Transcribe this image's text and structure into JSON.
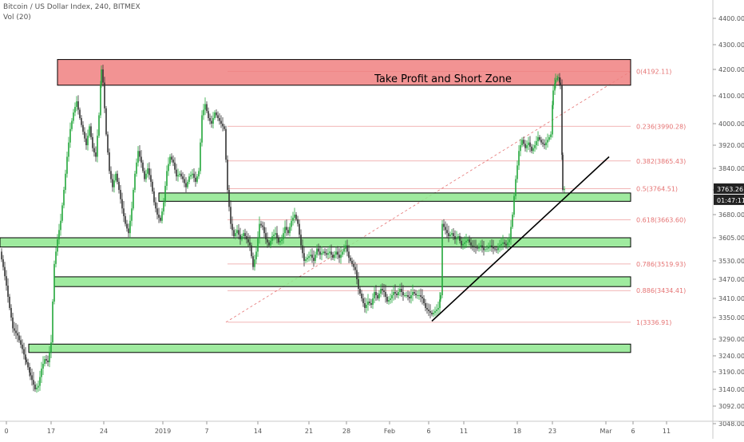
{
  "header": {
    "title": "Bitcoin / US Dollar Index, 240, BITMEX",
    "volume": "Vol (20)"
  },
  "colors": {
    "up": "#22a63a",
    "down": "#333333",
    "green_zone": "#8ee88e",
    "red_zone": "#f08080",
    "fib": "#e57373",
    "axis_text": "#555555"
  },
  "chart_data": {
    "type": "candlestick",
    "symbol": "Bitcoin / US Dollar Index",
    "timeframe": "240",
    "exchange": "BITMEX",
    "y_axis": {
      "ylim": [
        3048,
        4460
      ],
      "ticks": [
        "4400.00",
        "4300.00",
        "4200.00",
        "4100.00",
        "4000.00",
        "3920.00",
        "3840.00",
        "3760.00",
        "3680.00",
        "3605.00",
        "3530.00",
        "3470.00",
        "3410.00",
        "3350.00",
        "3290.00",
        "3240.00",
        "3190.00",
        "3140.00",
        "3092.00",
        "3048.00"
      ],
      "last_price": "3763.26",
      "countdown": "01:47:11"
    },
    "x_axis": {
      "ticks": [
        "0",
        "17",
        "24",
        "2019",
        "7",
        "14",
        "21",
        "28",
        "Feb",
        "6",
        "11",
        "18",
        "23",
        "Mar",
        "6",
        "11"
      ]
    },
    "annotation": "Take Profit and Short Zone",
    "zones": [
      {
        "kind": "resistance",
        "color": "red",
        "low": 4140,
        "high": 4240
      },
      {
        "kind": "support",
        "color": "green",
        "low": 3723,
        "high": 3750
      },
      {
        "kind": "support",
        "color": "green",
        "low": 3575,
        "high": 3605
      },
      {
        "kind": "support",
        "color": "green",
        "low": 3447,
        "high": 3478
      },
      {
        "kind": "support",
        "color": "green",
        "low": 3250,
        "high": 3275
      }
    ],
    "fib_levels": [
      {
        "label": "0(4192.11)",
        "value": 4192.11
      },
      {
        "label": "0.236(3990.28)",
        "value": 3990.28
      },
      {
        "label": "0.382(3865.43)",
        "value": 3865.43
      },
      {
        "label": "0.5(3764.51)",
        "value": 3764.51
      },
      {
        "label": "0.618(3663.60)",
        "value": 3663.6
      },
      {
        "label": "0.786(3519.93)",
        "value": 3519.93
      },
      {
        "label": "0.886(3434.41)",
        "value": 3434.41
      },
      {
        "label": "1(3336.91)",
        "value": 3336.91
      }
    ],
    "trendline_support": {
      "start": [
        "Feb 6",
        3340
      ],
      "end": [
        "Feb 28",
        3880
      ]
    },
    "fib_extension_line": {
      "start": [
        3336.91
      ],
      "end": [
        4192.11
      ]
    },
    "price_path": [
      [
        0,
        3560
      ],
      [
        4,
        3510
      ],
      [
        8,
        3450
      ],
      [
        12,
        3380
      ],
      [
        16,
        3320
      ],
      [
        22,
        3300
      ],
      [
        28,
        3260
      ],
      [
        33,
        3220
      ],
      [
        38,
        3180
      ],
      [
        44,
        3140
      ],
      [
        48,
        3150
      ],
      [
        52,
        3200
      ],
      [
        56,
        3230
      ],
      [
        60,
        3220
      ],
      [
        64,
        3280
      ],
      [
        68,
        3520
      ],
      [
        72,
        3600
      ],
      [
        76,
        3660
      ],
      [
        80,
        3760
      ],
      [
        84,
        3880
      ],
      [
        88,
        3980
      ],
      [
        92,
        4040
      ],
      [
        96,
        4080
      ],
      [
        100,
        4020
      ],
      [
        104,
        3970
      ],
      [
        108,
        3920
      ],
      [
        112,
        3990
      ],
      [
        116,
        3910
      ],
      [
        120,
        3880
      ],
      [
        124,
        4030
      ],
      [
        127,
        4200
      ],
      [
        129,
        4150
      ],
      [
        133,
        3960
      ],
      [
        137,
        3830
      ],
      [
        141,
        3770
      ],
      [
        145,
        3820
      ],
      [
        149,
        3760
      ],
      [
        153,
        3700
      ],
      [
        157,
        3650
      ],
      [
        161,
        3620
      ],
      [
        165,
        3700
      ],
      [
        169,
        3820
      ],
      [
        173,
        3900
      ],
      [
        177,
        3860
      ],
      [
        181,
        3800
      ],
      [
        185,
        3840
      ],
      [
        189,
        3790
      ],
      [
        193,
        3720
      ],
      [
        197,
        3680
      ],
      [
        201,
        3660
      ],
      [
        205,
        3720
      ],
      [
        209,
        3830
      ],
      [
        213,
        3880
      ],
      [
        217,
        3860
      ],
      [
        221,
        3810
      ],
      [
        225,
        3820
      ],
      [
        229,
        3800
      ],
      [
        233,
        3770
      ],
      [
        237,
        3810
      ],
      [
        241,
        3820
      ],
      [
        245,
        3790
      ],
      [
        249,
        3830
      ],
      [
        253,
        4030
      ],
      [
        257,
        4070
      ],
      [
        261,
        4020
      ],
      [
        265,
        4000
      ],
      [
        269,
        4040
      ],
      [
        273,
        4020
      ],
      [
        277,
        4000
      ],
      [
        281,
        3980
      ],
      [
        285,
        3760
      ],
      [
        289,
        3650
      ],
      [
        293,
        3610
      ],
      [
        297,
        3630
      ],
      [
        301,
        3600
      ],
      [
        305,
        3620
      ],
      [
        309,
        3600
      ],
      [
        313,
        3580
      ],
      [
        317,
        3510
      ],
      [
        321,
        3560
      ],
      [
        325,
        3650
      ],
      [
        329,
        3640
      ],
      [
        333,
        3600
      ],
      [
        337,
        3580
      ],
      [
        341,
        3610
      ],
      [
        345,
        3620
      ],
      [
        349,
        3590
      ],
      [
        353,
        3600
      ],
      [
        357,
        3640
      ],
      [
        361,
        3620
      ],
      [
        365,
        3660
      ],
      [
        369,
        3680
      ],
      [
        373,
        3650
      ],
      [
        377,
        3580
      ],
      [
        381,
        3530
      ],
      [
        385,
        3540
      ],
      [
        389,
        3550
      ],
      [
        393,
        3530
      ],
      [
        397,
        3570
      ],
      [
        401,
        3550
      ],
      [
        405,
        3560
      ],
      [
        409,
        3550
      ],
      [
        413,
        3560
      ],
      [
        417,
        3540
      ],
      [
        421,
        3560
      ],
      [
        425,
        3540
      ],
      [
        429,
        3560
      ],
      [
        433,
        3580
      ],
      [
        437,
        3540
      ],
      [
        441,
        3520
      ],
      [
        445,
        3500
      ],
      [
        449,
        3440
      ],
      [
        453,
        3410
      ],
      [
        457,
        3380
      ],
      [
        461,
        3400
      ],
      [
        465,
        3390
      ],
      [
        469,
        3430
      ],
      [
        473,
        3410
      ],
      [
        477,
        3440
      ],
      [
        481,
        3430
      ],
      [
        485,
        3400
      ],
      [
        489,
        3410
      ],
      [
        493,
        3430
      ],
      [
        497,
        3420
      ],
      [
        501,
        3440
      ],
      [
        505,
        3420
      ],
      [
        509,
        3420
      ],
      [
        513,
        3410
      ],
      [
        517,
        3430
      ],
      [
        521,
        3420
      ],
      [
        525,
        3420
      ],
      [
        529,
        3410
      ],
      [
        533,
        3380
      ],
      [
        537,
        3370
      ],
      [
        541,
        3360
      ],
      [
        545,
        3370
      ],
      [
        549,
        3380
      ],
      [
        552,
        3420
      ],
      [
        554,
        3650
      ],
      [
        558,
        3630
      ],
      [
        562,
        3610
      ],
      [
        566,
        3620
      ],
      [
        570,
        3600
      ],
      [
        574,
        3610
      ],
      [
        578,
        3580
      ],
      [
        582,
        3590
      ],
      [
        586,
        3600
      ],
      [
        590,
        3580
      ],
      [
        594,
        3575
      ],
      [
        598,
        3570
      ],
      [
        602,
        3580
      ],
      [
        606,
        3565
      ],
      [
        610,
        3570
      ],
      [
        614,
        3580
      ],
      [
        618,
        3570
      ],
      [
        622,
        3565
      ],
      [
        626,
        3580
      ],
      [
        630,
        3590
      ],
      [
        634,
        3580
      ],
      [
        638,
        3600
      ],
      [
        642,
        3680
      ],
      [
        646,
        3800
      ],
      [
        650,
        3900
      ],
      [
        654,
        3940
      ],
      [
        658,
        3910
      ],
      [
        662,
        3930
      ],
      [
        666,
        3900
      ],
      [
        670,
        3920
      ],
      [
        674,
        3950
      ],
      [
        678,
        3930
      ],
      [
        682,
        3920
      ],
      [
        686,
        3940
      ],
      [
        690,
        3960
      ],
      [
        693,
        4120
      ],
      [
        696,
        4160
      ],
      [
        699,
        4170
      ],
      [
        702,
        4140
      ],
      [
        705,
        3760
      ],
      [
        707,
        3763
      ]
    ]
  }
}
